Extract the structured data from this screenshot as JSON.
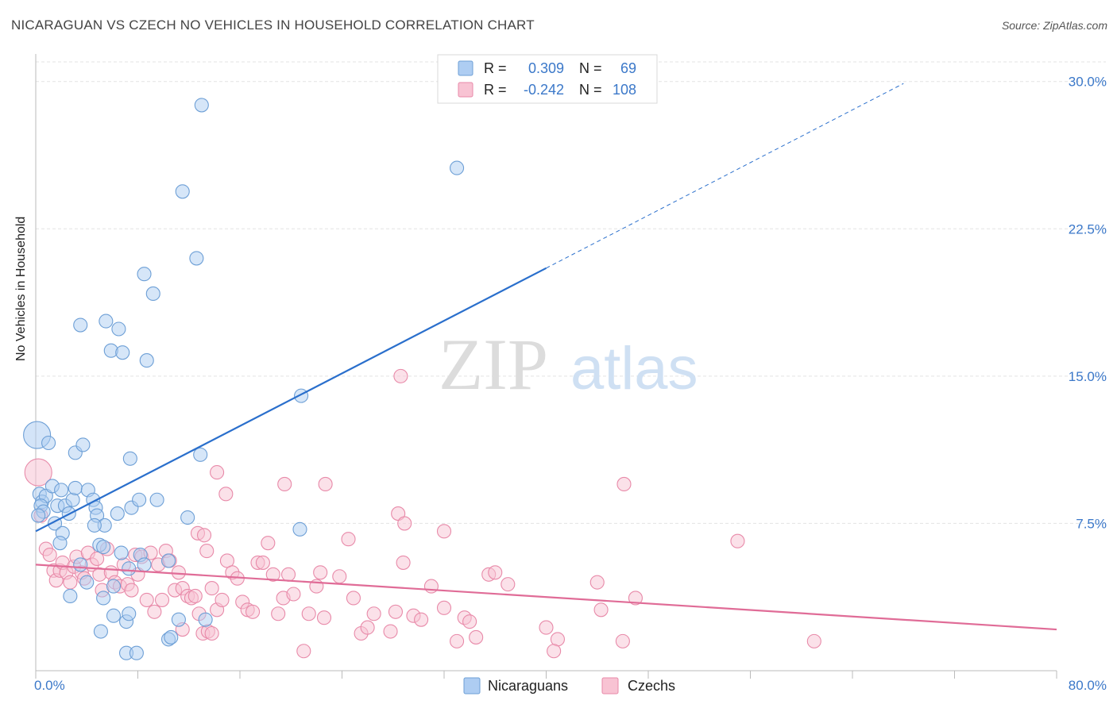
{
  "header": {
    "title": "NICARAGUAN VS CZECH NO VEHICLES IN HOUSEHOLD CORRELATION CHART",
    "source": "Source: ZipAtlas.com"
  },
  "watermark": {
    "zip": "ZIP",
    "atlas": "atlas"
  },
  "legend_box": {
    "rows": [
      {
        "r_label": "R =",
        "r_value": "0.309",
        "n_label": "N =",
        "n_value": "69"
      },
      {
        "r_label": "R =",
        "r_value": "-0.242",
        "n_label": "N =",
        "n_value": "108"
      }
    ]
  },
  "colors": {
    "blue_fill": "#aecdf2",
    "blue_stroke": "#6d9fd6",
    "blue_line": "#2a6fcc",
    "pink_fill": "#f8c3d3",
    "pink_stroke": "#e88aa9",
    "pink_line": "#e06c97",
    "grid": "#e3e3e3",
    "axis_label": "#3b78c9"
  },
  "chart_data": {
    "type": "scatter",
    "title": "NICARAGUAN VS CZECH NO VEHICLES IN HOUSEHOLD CORRELATION CHART",
    "xlabel": "",
    "ylabel": "No Vehicles in Household",
    "xlim": [
      0,
      80
    ],
    "ylim": [
      0,
      31
    ],
    "x_tick_labels": [
      "0.0%",
      "80.0%"
    ],
    "y_ticks": [
      7.5,
      15.0,
      22.5,
      30.0
    ],
    "y_tick_labels": [
      "7.5%",
      "15.0%",
      "22.5%",
      "30.0%"
    ],
    "grid": true,
    "legend_position": "bottom",
    "series": [
      {
        "name": "Nicaraguans",
        "color": "#aecdf2",
        "r": 0.309,
        "n": 69,
        "trend": {
          "x0": 0,
          "y0": 7.1,
          "x1": 40,
          "y1": 20.5,
          "x_dash_end": 68,
          "y_dash_end": 29.9
        },
        "points": [
          [
            0.1,
            12.0
          ],
          [
            1.0,
            11.6
          ],
          [
            0.3,
            9.0
          ],
          [
            0.5,
            8.6
          ],
          [
            0.8,
            8.9
          ],
          [
            0.4,
            8.4
          ],
          [
            0.6,
            8.1
          ],
          [
            1.3,
            9.4
          ],
          [
            1.7,
            8.4
          ],
          [
            1.5,
            7.5
          ],
          [
            2.0,
            9.2
          ],
          [
            2.3,
            8.4
          ],
          [
            2.6,
            8.0
          ],
          [
            2.9,
            8.7
          ],
          [
            3.1,
            9.3
          ],
          [
            4.1,
            9.2
          ],
          [
            4.5,
            8.7
          ],
          [
            4.7,
            8.3
          ],
          [
            4.8,
            7.9
          ],
          [
            5.4,
            7.4
          ],
          [
            6.4,
            8.0
          ],
          [
            7.5,
            8.3
          ],
          [
            8.1,
            8.7
          ],
          [
            9.5,
            8.7
          ],
          [
            11.9,
            7.8
          ],
          [
            12.9,
            11.0
          ],
          [
            3.1,
            11.1
          ],
          [
            3.7,
            11.5
          ],
          [
            7.4,
            10.8
          ],
          [
            2.1,
            7.0
          ],
          [
            1.9,
            6.5
          ],
          [
            4.6,
            7.4
          ],
          [
            5.0,
            6.4
          ],
          [
            5.3,
            6.3
          ],
          [
            6.7,
            6.0
          ],
          [
            8.2,
            5.9
          ],
          [
            8.5,
            5.4
          ],
          [
            7.3,
            5.2
          ],
          [
            10.4,
            5.6
          ],
          [
            3.5,
            5.4
          ],
          [
            4.0,
            4.5
          ],
          [
            6.1,
            4.3
          ],
          [
            2.7,
            3.8
          ],
          [
            5.3,
            3.7
          ],
          [
            6.1,
            2.8
          ],
          [
            7.1,
            2.5
          ],
          [
            7.3,
            2.9
          ],
          [
            11.2,
            2.6
          ],
          [
            13.3,
            2.6
          ],
          [
            5.1,
            2.0
          ],
          [
            10.4,
            1.6
          ],
          [
            10.6,
            1.7
          ],
          [
            7.1,
            0.9
          ],
          [
            7.9,
            0.9
          ],
          [
            13.0,
            28.8
          ],
          [
            11.5,
            24.4
          ],
          [
            12.6,
            21.0
          ],
          [
            8.5,
            20.2
          ],
          [
            9.2,
            19.2
          ],
          [
            3.5,
            17.6
          ],
          [
            5.5,
            17.8
          ],
          [
            6.5,
            17.4
          ],
          [
            5.9,
            16.3
          ],
          [
            6.8,
            16.2
          ],
          [
            8.7,
            15.8
          ],
          [
            20.8,
            14.0
          ],
          [
            33.0,
            25.6
          ],
          [
            20.7,
            7.2
          ],
          [
            0.2,
            7.9
          ]
        ]
      },
      {
        "name": "Czechs",
        "color": "#f8c3d3",
        "r": -0.242,
        "n": 108,
        "trend": {
          "x0": 0,
          "y0": 5.4,
          "x1": 80,
          "y1": 2.1
        },
        "points": [
          [
            0.2,
            10.1
          ],
          [
            0.4,
            7.9
          ],
          [
            0.8,
            6.2
          ],
          [
            1.1,
            5.9
          ],
          [
            1.4,
            5.1
          ],
          [
            1.6,
            4.6
          ],
          [
            1.9,
            5.1
          ],
          [
            2.1,
            5.5
          ],
          [
            2.4,
            5.0
          ],
          [
            2.7,
            4.5
          ],
          [
            3.0,
            5.3
          ],
          [
            3.2,
            5.8
          ],
          [
            3.6,
            5.0
          ],
          [
            3.8,
            4.7
          ],
          [
            4.1,
            6.0
          ],
          [
            4.4,
            5.4
          ],
          [
            4.8,
            5.7
          ],
          [
            5.0,
            4.9
          ],
          [
            5.2,
            4.1
          ],
          [
            5.6,
            6.2
          ],
          [
            5.9,
            5.0
          ],
          [
            6.2,
            4.5
          ],
          [
            6.6,
            4.3
          ],
          [
            6.9,
            5.4
          ],
          [
            7.2,
            4.4
          ],
          [
            7.5,
            4.1
          ],
          [
            7.8,
            5.9
          ],
          [
            8.0,
            4.9
          ],
          [
            8.3,
            5.8
          ],
          [
            8.7,
            3.6
          ],
          [
            9.0,
            6.0
          ],
          [
            9.3,
            3.0
          ],
          [
            9.6,
            5.4
          ],
          [
            9.9,
            3.6
          ],
          [
            10.2,
            6.1
          ],
          [
            10.5,
            5.6
          ],
          [
            10.9,
            4.1
          ],
          [
            11.2,
            5.0
          ],
          [
            11.5,
            4.2
          ],
          [
            11.9,
            3.8
          ],
          [
            12.2,
            3.7
          ],
          [
            12.5,
            3.8
          ],
          [
            12.8,
            2.9
          ],
          [
            13.1,
            1.9
          ],
          [
            13.5,
            2.0
          ],
          [
            13.8,
            4.2
          ],
          [
            14.2,
            3.1
          ],
          [
            14.6,
            3.6
          ],
          [
            15.0,
            5.6
          ],
          [
            15.4,
            5.0
          ],
          [
            15.8,
            4.7
          ],
          [
            16.2,
            3.5
          ],
          [
            16.6,
            3.1
          ],
          [
            17.0,
            3.0
          ],
          [
            17.4,
            5.5
          ],
          [
            17.8,
            5.5
          ],
          [
            18.2,
            6.5
          ],
          [
            18.6,
            4.9
          ],
          [
            19.0,
            2.9
          ],
          [
            19.4,
            3.7
          ],
          [
            19.8,
            4.9
          ],
          [
            20.2,
            3.9
          ],
          [
            21.0,
            1.0
          ],
          [
            21.4,
            2.9
          ],
          [
            22.0,
            4.3
          ],
          [
            22.3,
            5.0
          ],
          [
            22.6,
            2.7
          ],
          [
            23.8,
            4.8
          ],
          [
            24.5,
            6.7
          ],
          [
            24.9,
            3.7
          ],
          [
            25.5,
            1.9
          ],
          [
            26.0,
            2.2
          ],
          [
            26.5,
            2.9
          ],
          [
            27.8,
            2.0
          ],
          [
            28.2,
            3.0
          ],
          [
            28.8,
            5.5
          ],
          [
            29.6,
            2.8
          ],
          [
            30.2,
            2.6
          ],
          [
            31.0,
            4.3
          ],
          [
            32.0,
            3.2
          ],
          [
            33.0,
            1.5
          ],
          [
            33.6,
            2.7
          ],
          [
            34.0,
            2.5
          ],
          [
            34.5,
            1.7
          ],
          [
            35.5,
            4.9
          ],
          [
            36.0,
            5.0
          ],
          [
            37.0,
            4.4
          ],
          [
            28.6,
            15.0
          ],
          [
            28.4,
            8.0
          ],
          [
            28.9,
            7.5
          ],
          [
            32.0,
            7.1
          ],
          [
            14.2,
            10.1
          ],
          [
            14.9,
            9.0
          ],
          [
            19.5,
            9.5
          ],
          [
            22.7,
            9.5
          ],
          [
            12.7,
            7.0
          ],
          [
            13.2,
            6.9
          ],
          [
            13.4,
            6.1
          ],
          [
            13.8,
            1.9
          ],
          [
            11.5,
            2.1
          ],
          [
            40.0,
            2.2
          ],
          [
            40.9,
            1.6
          ],
          [
            40.6,
            1.0
          ],
          [
            44.0,
            4.5
          ],
          [
            44.3,
            3.1
          ],
          [
            46.0,
            1.5
          ],
          [
            47.0,
            3.7
          ],
          [
            55.0,
            6.6
          ],
          [
            61.0,
            1.5
          ],
          [
            46.1,
            9.5
          ]
        ]
      }
    ]
  }
}
